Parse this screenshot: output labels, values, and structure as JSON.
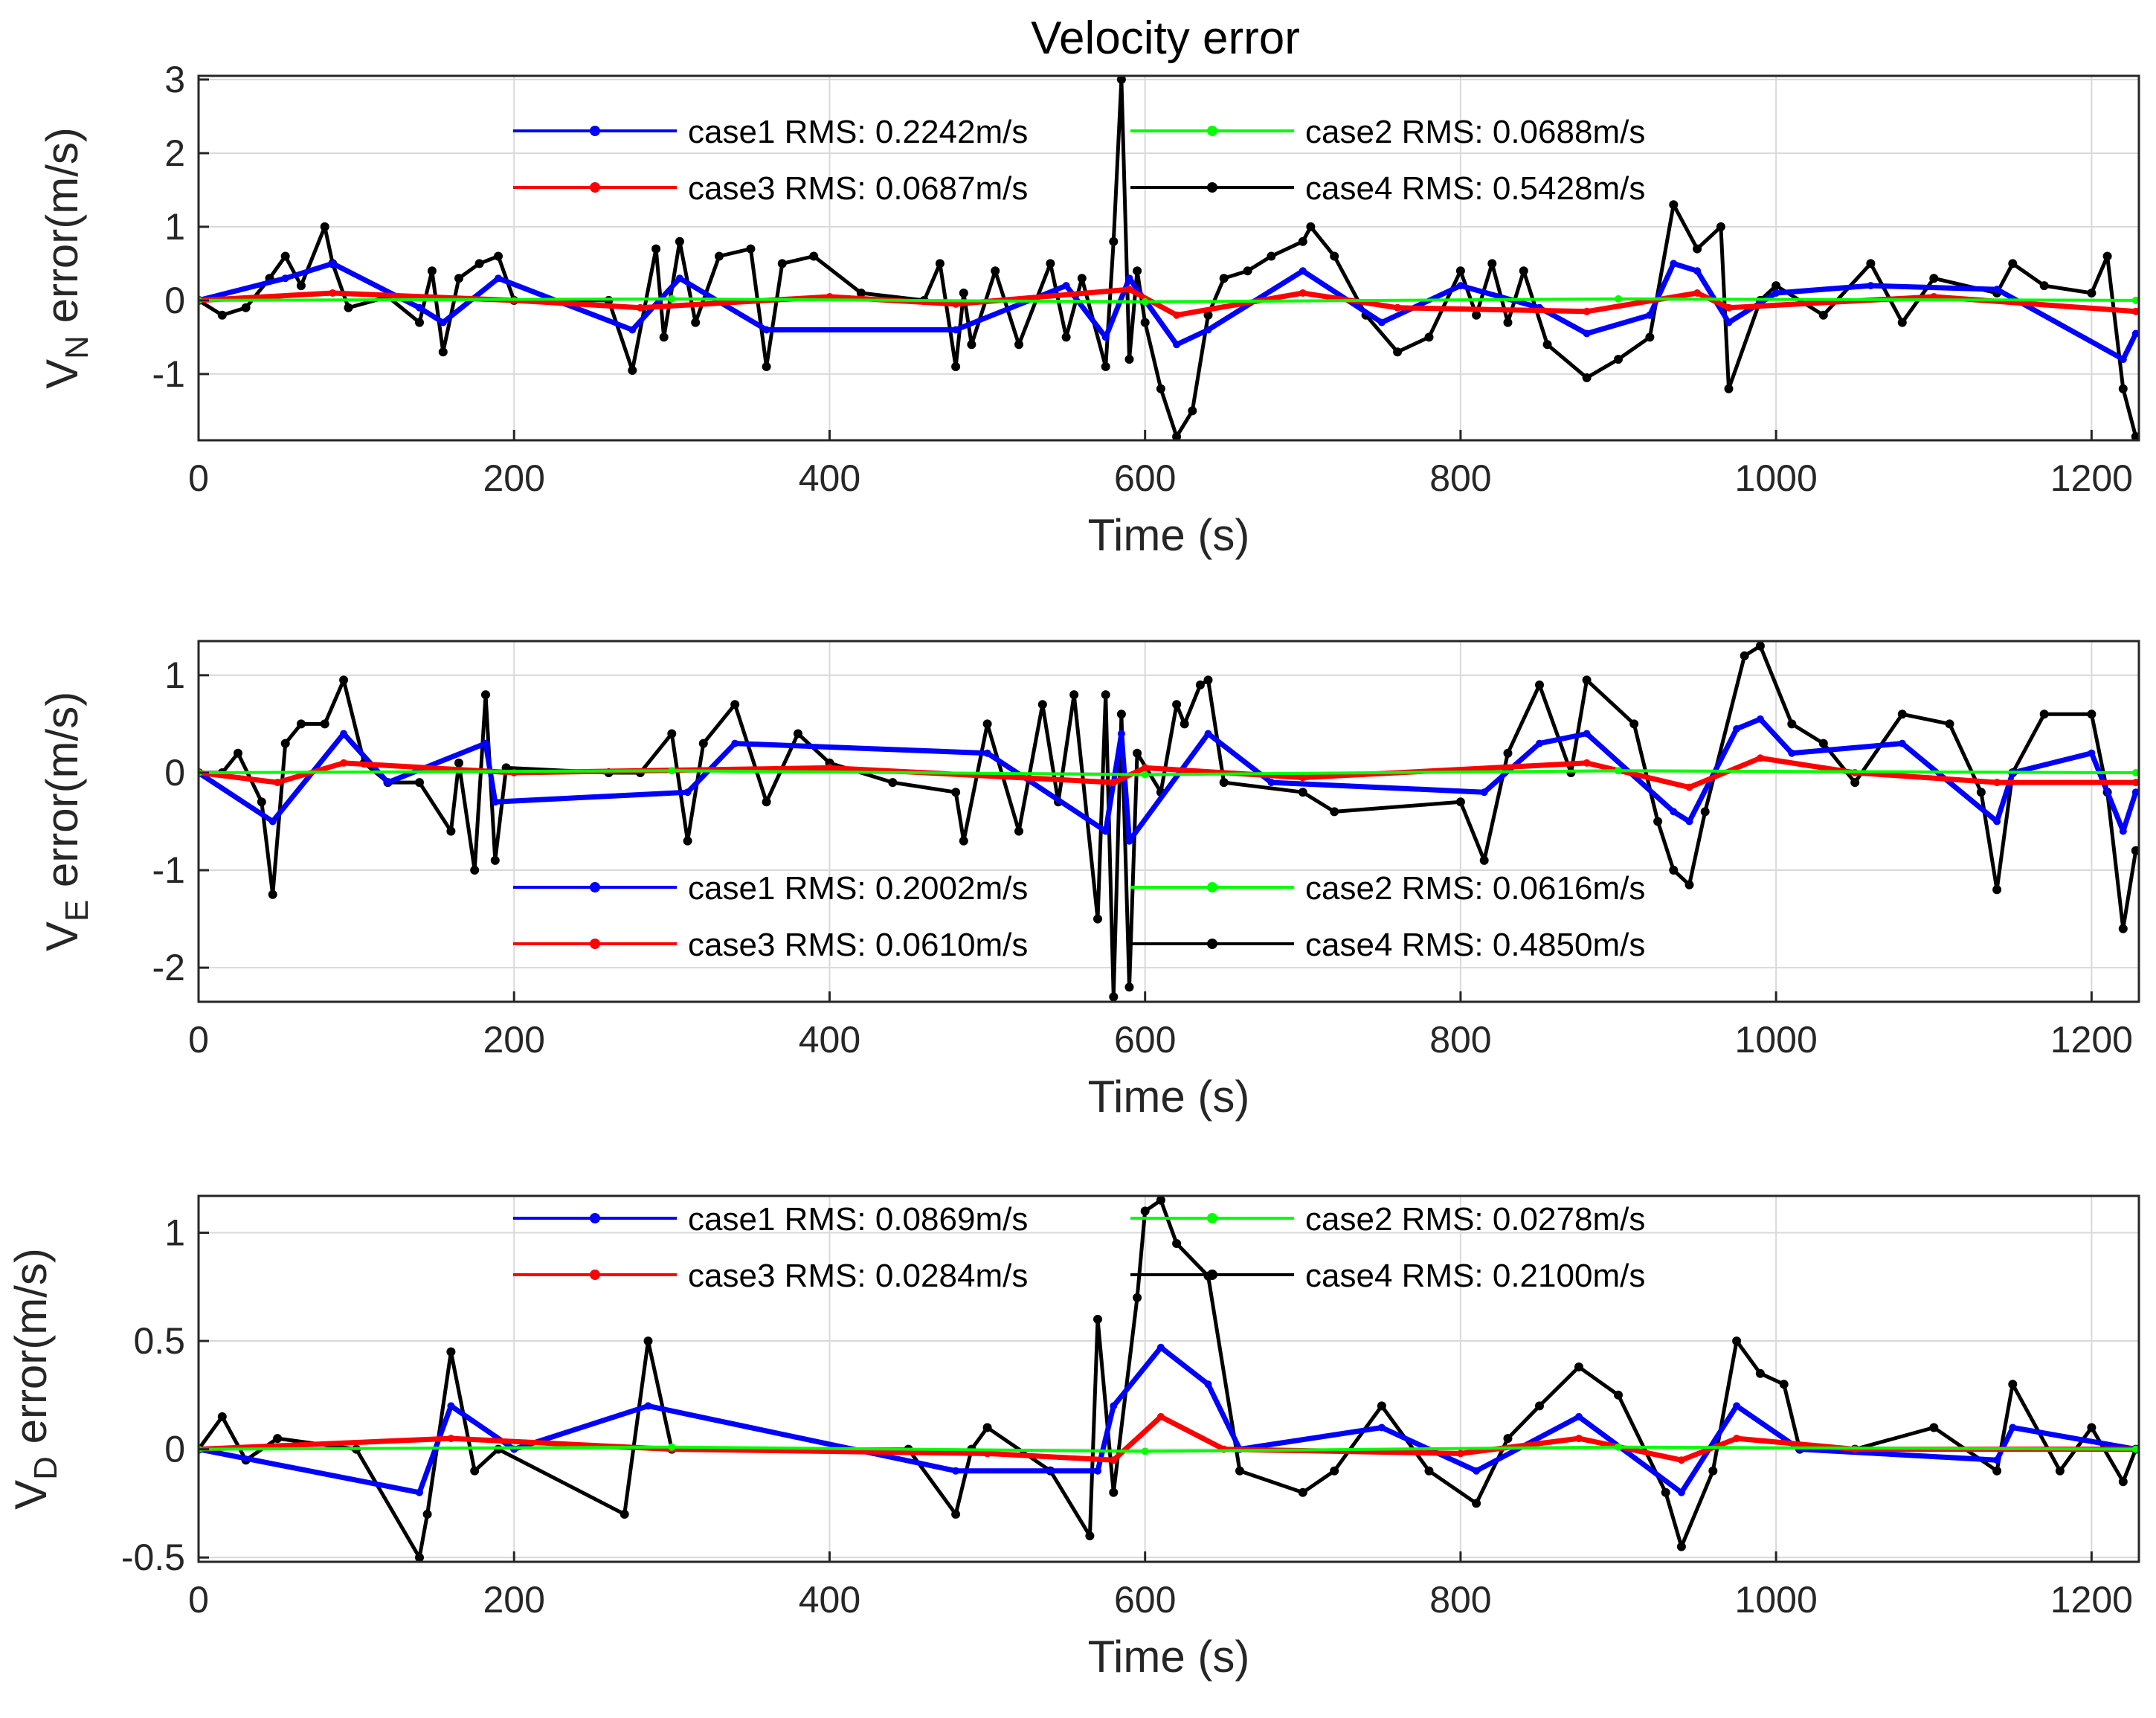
{
  "figure_title": "Velocity error",
  "colors": {
    "case1": "#0000ff",
    "case2": "#00ff00",
    "case3": "#ff0000",
    "case4": "#000000"
  },
  "chart_data": [
    {
      "type": "line",
      "ylabel_main": "V",
      "ylabel_sub": "N",
      "ylabel_rest": " error(m/s)",
      "xlabel": "Time (s)",
      "xlim": [
        0,
        1230
      ],
      "ylim": [
        -1.9,
        3.05
      ],
      "xticks": [
        0,
        200,
        400,
        600,
        800,
        1000,
        1200
      ],
      "yticks": [
        -1,
        0,
        1,
        2,
        3
      ],
      "ytick_labels": [
        "-1",
        "0",
        "1",
        "2",
        "3"
      ],
      "legend": [
        {
          "name": "case1 RMS: 0.2242m/s",
          "color": "#0000ff"
        },
        {
          "name": "case2 RMS: 0.0688m/s",
          "color": "#00ff00"
        },
        {
          "name": "case3 RMS: 0.0687m/s",
          "color": "#ff0000"
        },
        {
          "name": "case4 RMS: 0.5428m/s",
          "color": "#000000"
        }
      ],
      "legend_placement": "top-center",
      "series": [
        {
          "name": "case4",
          "color": "#000000",
          "x": [
            0,
            15,
            30,
            45,
            55,
            65,
            80,
            85,
            95,
            120,
            140,
            148,
            155,
            165,
            178,
            190,
            200,
            260,
            275,
            290,
            295,
            305,
            315,
            330,
            350,
            360,
            370,
            390,
            420,
            460,
            470,
            480,
            485,
            490,
            505,
            520,
            540,
            550,
            560,
            575,
            580,
            585,
            590,
            595,
            600,
            610,
            620,
            630,
            640,
            650,
            665,
            680,
            700,
            705,
            720,
            740,
            760,
            780,
            800,
            810,
            820,
            830,
            840,
            855,
            880,
            900,
            920,
            935,
            950,
            965,
            970,
            990,
            1000,
            1030,
            1060,
            1080,
            1100,
            1140,
            1150,
            1170,
            1200,
            1210,
            1220,
            1228
          ],
          "y": [
            0.0,
            -0.2,
            -0.1,
            0.3,
            0.6,
            0.2,
            1.0,
            0.5,
            -0.1,
            0.05,
            -0.3,
            0.4,
            -0.7,
            0.3,
            0.5,
            0.6,
            0.0,
            0.0,
            -0.95,
            0.7,
            -0.5,
            0.8,
            -0.3,
            0.6,
            0.7,
            -0.9,
            0.5,
            0.6,
            0.1,
            0.0,
            0.5,
            -0.9,
            0.1,
            -0.6,
            0.4,
            -0.6,
            0.5,
            -0.5,
            0.3,
            -0.9,
            0.8,
            3.0,
            -0.8,
            0.4,
            -0.3,
            -1.2,
            -1.85,
            -1.5,
            -0.2,
            0.3,
            0.4,
            0.6,
            0.8,
            1.0,
            0.6,
            -0.2,
            -0.7,
            -0.5,
            0.4,
            -0.2,
            0.5,
            -0.3,
            0.4,
            -0.6,
            -1.05,
            -0.8,
            -0.5,
            1.3,
            0.7,
            1.0,
            -1.2,
            0.0,
            0.2,
            -0.2,
            0.5,
            -0.3,
            0.3,
            0.1,
            0.5,
            0.2,
            0.1,
            0.6,
            -1.2,
            -1.85
          ]
        },
        {
          "name": "case1",
          "color": "#0000ff",
          "x": [
            0,
            55,
            85,
            140,
            155,
            190,
            275,
            305,
            360,
            480,
            550,
            575,
            590,
            620,
            640,
            700,
            750,
            800,
            850,
            880,
            920,
            935,
            950,
            970,
            1000,
            1060,
            1140,
            1220,
            1228
          ],
          "y": [
            0.0,
            0.3,
            0.5,
            -0.1,
            -0.3,
            0.3,
            -0.4,
            0.3,
            -0.4,
            -0.4,
            0.2,
            -0.5,
            0.3,
            -0.6,
            -0.4,
            0.4,
            -0.3,
            0.2,
            -0.1,
            -0.45,
            -0.2,
            0.5,
            0.4,
            -0.3,
            0.1,
            0.2,
            0.15,
            -0.8,
            -0.45
          ]
        },
        {
          "name": "case3",
          "color": "#ff0000",
          "x": [
            0,
            85,
            200,
            280,
            400,
            480,
            590,
            620,
            700,
            760,
            880,
            950,
            970,
            1100,
            1228
          ],
          "y": [
            0.0,
            0.1,
            0.0,
            -0.1,
            0.05,
            -0.05,
            0.15,
            -0.2,
            0.1,
            -0.1,
            -0.15,
            0.1,
            -0.1,
            0.05,
            -0.15
          ]
        },
        {
          "name": "case2",
          "color": "#00ff00",
          "x": [
            0,
            300,
            600,
            900,
            1228
          ],
          "y": [
            0.0,
            0.02,
            -0.02,
            0.02,
            0.0
          ]
        }
      ]
    },
    {
      "type": "line",
      "ylabel_main": "V",
      "ylabel_sub": "E",
      "ylabel_rest": " error(m/s)",
      "xlabel": "Time (s)",
      "xlim": [
        0,
        1230
      ],
      "ylim": [
        -2.35,
        1.35
      ],
      "xticks": [
        0,
        200,
        400,
        600,
        800,
        1000,
        1200
      ],
      "yticks": [
        -2,
        -1,
        0,
        1
      ],
      "ytick_labels": [
        "-2",
        "-1",
        "0",
        "1"
      ],
      "legend": [
        {
          "name": "case1 RMS: 0.2002m/s",
          "color": "#0000ff"
        },
        {
          "name": "case2 RMS: 0.0616m/s",
          "color": "#00ff00"
        },
        {
          "name": "case3 RMS: 0.0610m/s",
          "color": "#ff0000"
        },
        {
          "name": "case4 RMS: 0.4850m/s",
          "color": "#000000"
        }
      ],
      "legend_placement": "bottom-center",
      "series": [
        {
          "name": "case4",
          "color": "#000000",
          "x": [
            0,
            15,
            25,
            40,
            47,
            55,
            65,
            80,
            92,
            105,
            120,
            140,
            160,
            165,
            175,
            182,
            188,
            195,
            260,
            280,
            300,
            310,
            320,
            340,
            360,
            380,
            400,
            440,
            480,
            485,
            500,
            520,
            535,
            545,
            555,
            570,
            575,
            580,
            585,
            590,
            595,
            610,
            620,
            625,
            635,
            640,
            650,
            700,
            720,
            800,
            815,
            830,
            850,
            870,
            880,
            910,
            925,
            935,
            945,
            955,
            980,
            990,
            1010,
            1030,
            1050,
            1080,
            1110,
            1130,
            1140,
            1150,
            1170,
            1200,
            1210,
            1220,
            1228
          ],
          "y": [
            0.0,
            0.0,
            0.2,
            -0.3,
            -1.25,
            0.3,
            0.5,
            0.5,
            0.95,
            0.1,
            -0.1,
            -0.1,
            -0.6,
            0.1,
            -1.0,
            0.8,
            -0.9,
            0.05,
            0.0,
            0.0,
            0.4,
            -0.7,
            0.3,
            0.7,
            -0.3,
            0.4,
            0.1,
            -0.1,
            -0.2,
            -0.7,
            0.5,
            -0.6,
            0.7,
            -0.3,
            0.8,
            -1.5,
            0.8,
            -2.3,
            0.6,
            -2.2,
            0.2,
            -0.2,
            0.7,
            0.5,
            0.9,
            0.95,
            -0.1,
            -0.2,
            -0.4,
            -0.3,
            -0.9,
            0.2,
            0.9,
            0.0,
            0.95,
            0.5,
            -0.5,
            -1.0,
            -1.15,
            -0.4,
            1.2,
            1.3,
            0.5,
            0.3,
            -0.1,
            0.6,
            0.5,
            -0.2,
            -1.2,
            0.0,
            0.6,
            0.6,
            -0.2,
            -1.6,
            -0.8
          ]
        },
        {
          "name": "case1",
          "color": "#0000ff",
          "x": [
            0,
            47,
            92,
            120,
            182,
            188,
            310,
            340,
            500,
            575,
            585,
            590,
            640,
            680,
            815,
            850,
            880,
            935,
            945,
            975,
            990,
            1010,
            1080,
            1140,
            1150,
            1200,
            1220,
            1228
          ],
          "y": [
            0.0,
            -0.5,
            0.4,
            -0.1,
            0.3,
            -0.3,
            -0.2,
            0.3,
            0.2,
            -0.6,
            0.4,
            -0.7,
            0.4,
            -0.1,
            -0.2,
            0.3,
            0.4,
            -0.4,
            -0.5,
            0.45,
            0.55,
            0.2,
            0.3,
            -0.5,
            0.0,
            0.2,
            -0.6,
            -0.2
          ]
        },
        {
          "name": "case3",
          "color": "#ff0000",
          "x": [
            0,
            50,
            92,
            200,
            400,
            580,
            600,
            700,
            880,
            945,
            990,
            1050,
            1140,
            1228
          ],
          "y": [
            0.0,
            -0.1,
            0.1,
            0.0,
            0.05,
            -0.1,
            0.05,
            -0.05,
            0.1,
            -0.15,
            0.15,
            0.0,
            -0.1,
            -0.1
          ]
        },
        {
          "name": "case2",
          "color": "#00ff00",
          "x": [
            0,
            300,
            600,
            900,
            1228
          ],
          "y": [
            0.0,
            0.02,
            -0.02,
            0.02,
            0.0
          ]
        }
      ]
    },
    {
      "type": "line",
      "ylabel_main": "V",
      "ylabel_sub": "D",
      "ylabel_rest": " error(m/s)",
      "xlabel": "Time (s)",
      "xlim": [
        0,
        1230
      ],
      "ylim": [
        -0.52,
        1.17
      ],
      "xticks": [
        0,
        200,
        400,
        600,
        800,
        1000,
        1200
      ],
      "yticks": [
        -0.5,
        0,
        0.5,
        1
      ],
      "ytick_labels": [
        "-0.5",
        "0",
        "0.5",
        "1"
      ],
      "legend": [
        {
          "name": "case1 RMS: 0.0869m/s",
          "color": "#0000ff"
        },
        {
          "name": "case2 RMS:  0.0278m/s",
          "color": "#00ff00"
        },
        {
          "name": "case3 RMS:  0.0284m/s",
          "color": "#ff0000"
        },
        {
          "name": "case4 RMS:  0.2100m/s",
          "color": "#000000"
        }
      ],
      "legend_placement": "top-center",
      "series": [
        {
          "name": "case4",
          "color": "#000000",
          "x": [
            0,
            15,
            30,
            50,
            100,
            140,
            145,
            160,
            175,
            190,
            270,
            285,
            300,
            450,
            480,
            490,
            500,
            540,
            565,
            570,
            580,
            595,
            600,
            610,
            620,
            640,
            660,
            700,
            720,
            750,
            780,
            810,
            830,
            850,
            875,
            900,
            930,
            940,
            960,
            975,
            990,
            1005,
            1015,
            1050,
            1100,
            1140,
            1150,
            1180,
            1200,
            1220,
            1228
          ],
          "y": [
            0.0,
            0.15,
            -0.05,
            0.05,
            0.0,
            -0.5,
            -0.3,
            0.45,
            -0.1,
            0.0,
            -0.3,
            0.5,
            0.0,
            0.0,
            -0.3,
            0.0,
            0.1,
            -0.1,
            -0.4,
            0.6,
            -0.2,
            0.7,
            1.1,
            1.15,
            0.95,
            0.8,
            -0.1,
            -0.2,
            -0.1,
            0.2,
            -0.1,
            -0.25,
            0.05,
            0.2,
            0.38,
            0.25,
            -0.2,
            -0.45,
            -0.1,
            0.5,
            0.35,
            0.3,
            0.0,
            0.0,
            0.1,
            -0.1,
            0.3,
            -0.1,
            0.1,
            -0.15,
            0.0
          ]
        },
        {
          "name": "case1",
          "color": "#0000ff",
          "x": [
            0,
            140,
            160,
            200,
            285,
            480,
            570,
            580,
            610,
            640,
            660,
            750,
            810,
            875,
            940,
            975,
            1015,
            1140,
            1150,
            1228
          ],
          "y": [
            0.0,
            -0.2,
            0.2,
            0.0,
            0.2,
            -0.1,
            -0.1,
            0.2,
            0.47,
            0.3,
            0.0,
            0.1,
            -0.1,
            0.15,
            -0.2,
            0.2,
            0.0,
            -0.05,
            0.1,
            0.0
          ]
        },
        {
          "name": "case3",
          "color": "#ff0000",
          "x": [
            0,
            160,
            300,
            500,
            580,
            610,
            650,
            800,
            875,
            940,
            975,
            1050,
            1228
          ],
          "y": [
            0.0,
            0.05,
            0.0,
            -0.02,
            -0.05,
            0.15,
            0.0,
            -0.02,
            0.05,
            -0.05,
            0.05,
            0.0,
            0.0
          ]
        },
        {
          "name": "case2",
          "color": "#00ff00",
          "x": [
            0,
            300,
            600,
            900,
            1228
          ],
          "y": [
            0.0,
            0.01,
            -0.01,
            0.01,
            0.0
          ]
        }
      ]
    }
  ]
}
